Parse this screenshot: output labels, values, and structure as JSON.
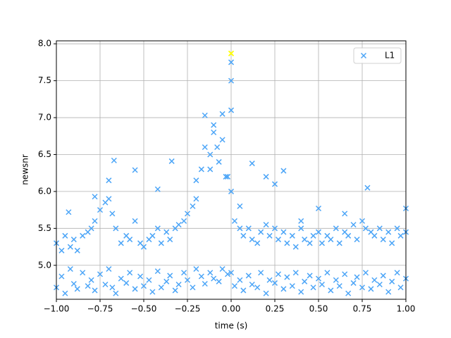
{
  "chart_data": {
    "type": "scatter",
    "xlabel": "time (s)",
    "ylabel": "newsnr",
    "xlim": [
      -1,
      1
    ],
    "ylim": [
      4.54,
      8.04
    ],
    "xticks": [
      {
        "value": -1,
        "label": "−1.00"
      },
      {
        "value": -0.75,
        "label": "−0.75"
      },
      {
        "value": -0.5,
        "label": "−0.50"
      },
      {
        "value": -0.25,
        "label": "−0.25"
      },
      {
        "value": 0,
        "label": "0.00"
      },
      {
        "value": 0.25,
        "label": "0.25"
      },
      {
        "value": 0.5,
        "label": "0.50"
      },
      {
        "value": 0.75,
        "label": "0.75"
      },
      {
        "value": 1,
        "label": "1.00"
      }
    ],
    "yticks": [
      {
        "value": 5,
        "label": "5.0"
      },
      {
        "value": 5.5,
        "label": "5.5"
      },
      {
        "value": 6,
        "label": "6.0"
      },
      {
        "value": 6.5,
        "label": "6.5"
      },
      {
        "value": 7,
        "label": "7.0"
      },
      {
        "value": 7.5,
        "label": "7.5"
      },
      {
        "value": 8,
        "label": "8.0"
      }
    ],
    "grid": true,
    "legend": "upper right",
    "series": [
      {
        "name": "L1",
        "color": "#4ca5f7",
        "marker": "x",
        "x": [
          -1.0,
          -0.97,
          -0.95,
          -0.92,
          -0.9,
          -0.88,
          -0.85,
          -0.82,
          -0.8,
          -0.78,
          -0.75,
          -0.72,
          -0.7,
          -0.68,
          -0.66,
          -0.63,
          -0.6,
          -0.58,
          -0.55,
          -0.52,
          -0.5,
          -0.47,
          -0.45,
          -0.42,
          -0.4,
          -0.37,
          -0.35,
          -0.32,
          -0.3,
          -0.27,
          -0.25,
          -0.22,
          -0.2,
          -0.17,
          -0.15,
          -0.12,
          -0.1,
          -0.07,
          -0.05,
          -0.02,
          0.0,
          0.02,
          0.05,
          0.07,
          0.1,
          0.12,
          0.15,
          0.17,
          0.2,
          0.22,
          0.25,
          0.27,
          0.3,
          0.32,
          0.35,
          0.37,
          0.4,
          0.42,
          0.45,
          0.47,
          0.5,
          0.52,
          0.55,
          0.57,
          0.6,
          0.62,
          0.65,
          0.67,
          0.7,
          0.72,
          0.75,
          0.77,
          0.8,
          0.82,
          0.85,
          0.87,
          0.9,
          0.92,
          0.95,
          0.97,
          1.0,
          -1.0,
          -0.97,
          -0.95,
          -0.92,
          -0.9,
          -0.88,
          -0.85,
          -0.82,
          -0.8,
          -0.78,
          -0.75,
          -0.72,
          -0.7,
          -0.68,
          -0.66,
          -0.63,
          -0.6,
          -0.58,
          -0.55,
          -0.52,
          -0.5,
          -0.47,
          -0.45,
          -0.42,
          -0.4,
          -0.37,
          -0.35,
          -0.32,
          -0.3,
          -0.27,
          -0.25,
          -0.22,
          -0.2,
          -0.17,
          -0.15,
          -0.12,
          -0.1,
          -0.07,
          -0.05,
          -0.02,
          0.0,
          0.02,
          0.05,
          0.07,
          0.1,
          0.12,
          0.15,
          0.17,
          0.2,
          0.22,
          0.25,
          0.27,
          0.3,
          0.32,
          0.35,
          0.37,
          0.4,
          0.42,
          0.45,
          0.47,
          0.5,
          0.52,
          0.55,
          0.57,
          0.6,
          0.62,
          0.65,
          0.67,
          0.7,
          0.72,
          0.75,
          0.77,
          0.8,
          0.82,
          0.85,
          0.87,
          0.9,
          0.92,
          0.95,
          0.97,
          1.0,
          -0.67,
          -0.7,
          -0.55,
          -0.42,
          -0.34,
          -0.2,
          -0.15,
          -0.1,
          -0.05,
          0.0,
          0.0,
          0.12,
          0.2,
          0.3,
          0.5,
          0.78,
          1.0,
          -0.93,
          -0.78,
          0.25,
          -0.12,
          -0.08,
          -0.03,
          0.05,
          0.4,
          0.65,
          0.0
        ],
        "y": [
          4.7,
          4.85,
          4.62,
          4.95,
          4.75,
          4.68,
          4.9,
          4.72,
          4.8,
          4.66,
          4.88,
          4.74,
          4.95,
          4.7,
          4.62,
          4.82,
          4.76,
          4.9,
          4.68,
          4.85,
          4.72,
          4.8,
          4.64,
          4.92,
          4.7,
          4.78,
          4.86,
          4.66,
          4.74,
          4.9,
          4.8,
          4.7,
          4.95,
          4.85,
          4.75,
          4.9,
          4.82,
          4.78,
          4.95,
          4.88,
          4.9,
          4.72,
          4.8,
          4.66,
          4.86,
          4.74,
          4.7,
          4.9,
          4.62,
          4.8,
          4.76,
          4.88,
          4.68,
          4.84,
          4.72,
          4.9,
          4.64,
          4.78,
          4.86,
          4.7,
          4.82,
          4.74,
          4.9,
          4.66,
          4.8,
          4.72,
          4.88,
          4.62,
          4.76,
          4.84,
          4.7,
          4.9,
          4.68,
          4.8,
          4.74,
          4.86,
          4.64,
          4.78,
          4.9,
          4.7,
          4.82,
          5.3,
          5.2,
          5.4,
          5.25,
          5.35,
          5.2,
          5.4,
          5.45,
          5.5,
          5.6,
          5.75,
          5.85,
          5.9,
          5.7,
          5.5,
          5.3,
          5.4,
          5.35,
          5.6,
          5.3,
          5.25,
          5.35,
          5.4,
          5.5,
          5.3,
          5.45,
          5.35,
          5.5,
          5.55,
          5.6,
          5.7,
          5.8,
          5.9,
          6.3,
          6.6,
          6.5,
          6.8,
          6.4,
          6.7,
          6.2,
          6.0,
          5.6,
          5.5,
          5.4,
          5.5,
          5.35,
          5.3,
          5.45,
          5.55,
          5.4,
          5.5,
          5.35,
          5.45,
          5.3,
          5.4,
          5.25,
          5.5,
          5.35,
          5.3,
          5.4,
          5.45,
          5.3,
          5.4,
          5.35,
          5.5,
          5.3,
          5.45,
          5.4,
          5.55,
          5.35,
          5.6,
          5.5,
          5.45,
          5.4,
          5.5,
          5.35,
          5.45,
          5.3,
          5.5,
          5.4,
          5.45,
          6.42,
          6.15,
          6.29,
          6.03,
          6.41,
          6.15,
          7.03,
          6.9,
          7.05,
          7.5,
          7.1,
          6.38,
          6.2,
          6.28,
          5.77,
          6.05,
          5.77,
          5.72,
          5.93,
          6.1,
          6.3,
          6.6,
          6.2,
          5.8,
          5.6,
          5.7,
          7.75
        ]
      }
    ],
    "highlight": {
      "x": 0,
      "y": 7.87,
      "color": "#ffff00"
    }
  }
}
